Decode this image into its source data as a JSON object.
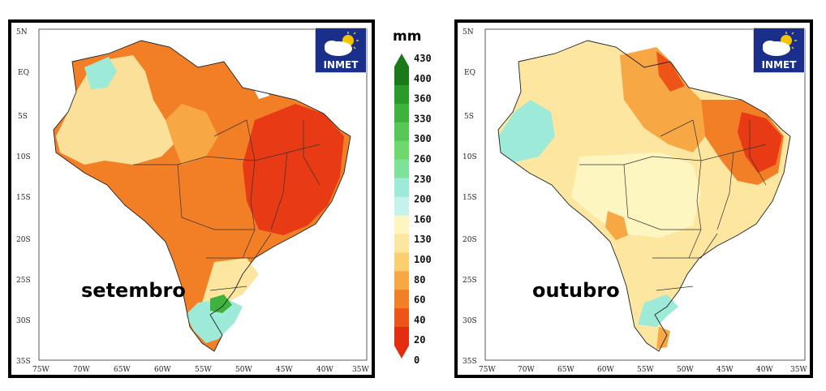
{
  "maps": [
    {
      "month_label": "setembro",
      "logo_text": "INMET",
      "lat_labels": [
        "5N",
        "EQ",
        "5S",
        "10S",
        "15S",
        "20S",
        "25S",
        "30S",
        "35S"
      ],
      "lon_labels": [
        "75W",
        "70W",
        "65W",
        "60W",
        "55W",
        "50W",
        "45W",
        "40W",
        "35W"
      ]
    },
    {
      "month_label": "outubro",
      "logo_text": "INMET",
      "lat_labels": [
        "5N",
        "EQ",
        "5S",
        "10S",
        "15S",
        "20S",
        "25S",
        "30S",
        "35S"
      ],
      "lon_labels": [
        "75W",
        "70W",
        "65W",
        "60W",
        "55W",
        "50W",
        "45W",
        "40W",
        "35W"
      ]
    }
  ],
  "legend": {
    "unit": "mm",
    "levels": [
      "430",
      "400",
      "360",
      "330",
      "300",
      "260",
      "230",
      "200",
      "160",
      "130",
      "100",
      "80",
      "60",
      "40",
      "20",
      "0"
    ],
    "colors": [
      "#1a7a1a",
      "#2a9a2a",
      "#3db33d",
      "#55c855",
      "#6ed86e",
      "#7ee29a",
      "#9eead8",
      "#c6f2ec",
      "#fdf6c0",
      "#fde6a0",
      "#fbcf70",
      "#f7a845",
      "#f27f25",
      "#ec5418",
      "#e42c10"
    ]
  }
}
